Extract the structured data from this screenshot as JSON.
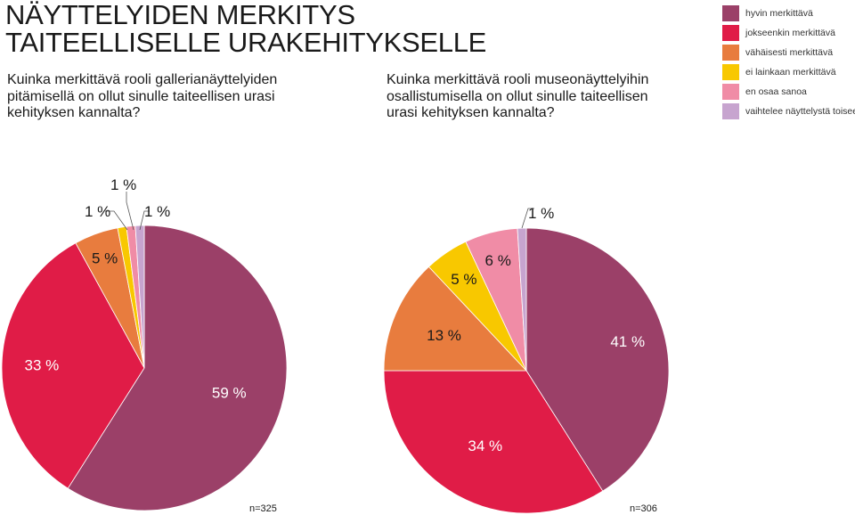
{
  "title": {
    "line1": "NÄYTTELYIDEN MERKITYS",
    "line2": "TAITEELLISELLE URAKEHITYKSELLE"
  },
  "legend": [
    {
      "label": "hyvin merkittävä",
      "color": "#9b4068"
    },
    {
      "label": "jokseenkin merkittävä",
      "color": "#e01c47"
    },
    {
      "label": "vähäisesti merkittävä",
      "color": "#e87c3e"
    },
    {
      "label": "ei lainkaan merkittävä",
      "color": "#f8c800"
    },
    {
      "label": "en osaa sanoa",
      "color": "#f08ca6"
    },
    {
      "label": "vaihtelee näyttelystä toiseen",
      "color": "#c7a4cf"
    }
  ],
  "chart_data": [
    {
      "type": "pie",
      "title": "Kuinka merkittävä rooli gallerianäyttelyiden pitämisellä on ollut sinulle taiteellisen urasi kehityksen kannalta?",
      "categories": [
        "hyvin merkittävä",
        "jokseenkin merkittävä",
        "vähäisesti merkittävä",
        "ei lainkaan merkittävä",
        "en osaa sanoa",
        "vaihtelee näyttelystä toiseen"
      ],
      "values": [
        59,
        33,
        5,
        1,
        1,
        1
      ],
      "labels": [
        "59 %",
        "33 %",
        "5 %",
        "1 %",
        "1 %",
        "1 %"
      ],
      "n": "n=325"
    },
    {
      "type": "pie",
      "title": "Kuinka merkittävä rooli museonäyttelyihin osallistumisella on ollut sinulle taiteellisen urasi kehityksen kannalta?",
      "categories": [
        "hyvin merkittävä",
        "jokseenkin merkittävä",
        "vähäisesti merkittävä",
        "ei lainkaan merkittävä",
        "en osaa sanoa",
        "vaihtelee näyttelystä toiseen"
      ],
      "values": [
        41,
        34,
        13,
        5,
        6,
        1
      ],
      "labels": [
        "41 %",
        "34 %",
        "13 %",
        "5 %",
        "6 %",
        "1 %"
      ],
      "n": "n=306"
    }
  ]
}
